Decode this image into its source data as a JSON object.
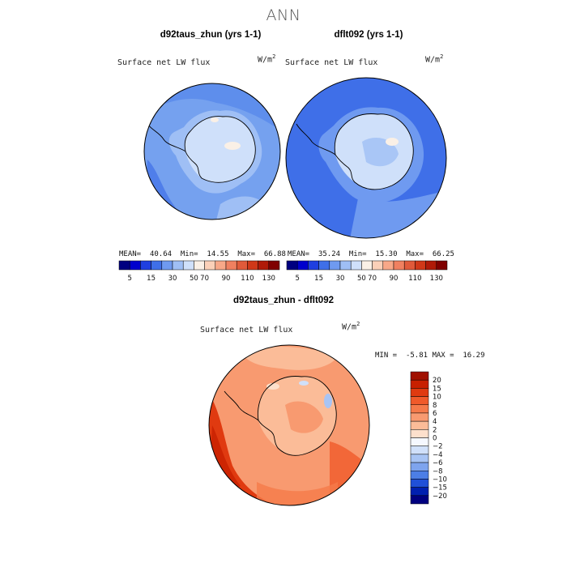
{
  "figure": {
    "title": "ANN"
  },
  "panels": [
    {
      "title": "d92taus_zhun (yrs 1-1)",
      "variable": "Surface net LW flux",
      "units": "W/m",
      "units_sup": "2",
      "stats": {
        "mean_label": "MEAN=",
        "mean": "40.64",
        "min_label": "Min=",
        "min": "14.55",
        "max_label": "Max=",
        "max": "66.88"
      }
    },
    {
      "title": "dflt092 (yrs 1-1)",
      "variable": "Surface net LW flux",
      "units": "W/m",
      "units_sup": "2",
      "stats": {
        "mean_label": "MEAN=",
        "mean": "35.24",
        "min_label": "Min=",
        "min": "15.30",
        "max_label": "Max=",
        "max": "66.25"
      }
    },
    {
      "title": "d92taus_zhun - dflt092",
      "variable": "Surface net LW flux",
      "units": "W/m",
      "units_sup": "2",
      "stats": {
        "min_label": "MIN =",
        "min": "-5.81",
        "max_label": "MAX =",
        "max": "16.29"
      }
    }
  ],
  "chart_data": [
    {
      "type": "heatmap",
      "projection": "south polar stereographic",
      "title": "d92taus_zhun (yrs 1-1)",
      "field": "Surface net LW flux",
      "units": "W/m^2",
      "mean": 40.64,
      "min": 14.55,
      "max": 66.88,
      "colorbar": {
        "levels": [
          "5",
          "15",
          "30",
          "50",
          "70",
          "90",
          "110",
          "130"
        ],
        "colors": [
          "#000080",
          "#0000cd",
          "#1f3fe0",
          "#3f6fe8",
          "#6f9af0",
          "#9fbff5",
          "#cfe0fa",
          "#faf0e6",
          "#fbd0b8",
          "#f8a888",
          "#f08060",
          "#e05a3a",
          "#d03818",
          "#b01a08",
          "#800000"
        ]
      }
    },
    {
      "type": "heatmap",
      "projection": "south polar stereographic",
      "title": "dflt092 (yrs 1-1)",
      "field": "Surface net LW flux",
      "units": "W/m^2",
      "mean": 35.24,
      "min": 15.3,
      "max": 66.25,
      "colorbar": {
        "levels": [
          "5",
          "15",
          "30",
          "50",
          "70",
          "90",
          "110",
          "130"
        ],
        "colors": [
          "#000080",
          "#0000cd",
          "#1f3fe0",
          "#3f6fe8",
          "#6f9af0",
          "#9fbff5",
          "#cfe0fa",
          "#faf0e6",
          "#fbd0b8",
          "#f8a888",
          "#f08060",
          "#e05a3a",
          "#d03818",
          "#b01a08",
          "#800000"
        ]
      }
    },
    {
      "type": "heatmap",
      "projection": "south polar stereographic",
      "title": "d92taus_zhun - dflt092",
      "field": "Surface net LW flux",
      "units": "W/m^2",
      "min": -5.81,
      "max": 16.29,
      "colorbar": {
        "levels": [
          "20",
          "15",
          "10",
          "8",
          "6",
          "4",
          "2",
          "0",
          "-2",
          "-4",
          "-6",
          "-8",
          "-10",
          "-15",
          "-20"
        ],
        "colors": [
          "#a01000",
          "#c82000",
          "#e03a10",
          "#f05a2a",
          "#f57a4a",
          "#f89a70",
          "#fbbc98",
          "#fde0cc",
          "#f5f8ff",
          "#d0e0fa",
          "#a8c4f4",
          "#7ea4ee",
          "#4c7ee6",
          "#2050d8",
          "#0020b0",
          "#000080"
        ]
      }
    }
  ]
}
